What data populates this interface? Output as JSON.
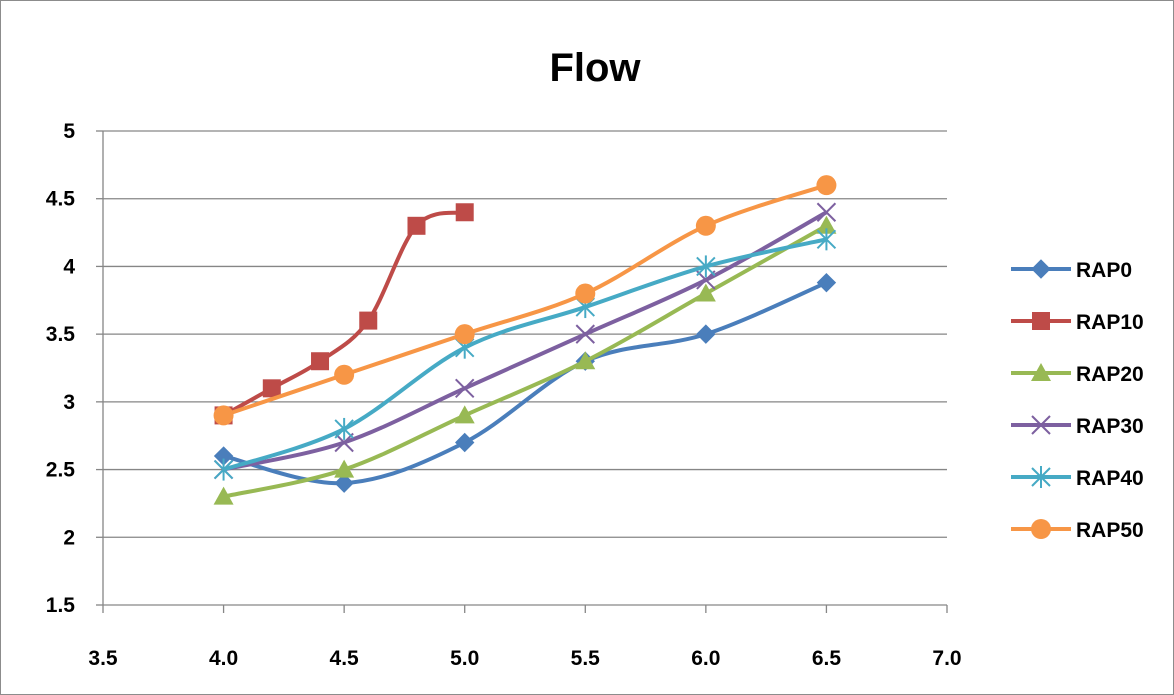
{
  "chart_data": {
    "type": "line",
    "title": "Flow",
    "xlabel": "",
    "ylabel": "",
    "xlim": [
      3.5,
      7.0
    ],
    "ylim": [
      1.5,
      5
    ],
    "x_ticks": [
      "3.5",
      "4.0",
      "4.5",
      "5.0",
      "5.5",
      "6.0",
      "6.5",
      "7.0"
    ],
    "y_ticks": [
      "1.5",
      "2",
      "2.5",
      "3",
      "3.5",
      "4",
      "4.5",
      "5"
    ],
    "grid": "horizontal",
    "legend_position": "right",
    "series": [
      {
        "name": "RAP0",
        "color": "#4a7ebb",
        "marker": "diamond",
        "x": [
          4.0,
          4.5,
          5.0,
          5.5,
          6.0,
          6.5
        ],
        "y": [
          2.6,
          2.4,
          2.7,
          3.3,
          3.5,
          3.88
        ]
      },
      {
        "name": "RAP10",
        "color": "#be4b48",
        "marker": "square",
        "x": [
          4.0,
          4.2,
          4.4,
          4.6,
          4.8,
          5.0
        ],
        "y": [
          2.9,
          3.1,
          3.3,
          3.6,
          4.3,
          4.4
        ]
      },
      {
        "name": "RAP20",
        "color": "#98b954",
        "marker": "triangle",
        "x": [
          4.0,
          4.5,
          5.0,
          5.5,
          6.0,
          6.5
        ],
        "y": [
          2.3,
          2.5,
          2.9,
          3.3,
          3.8,
          4.3
        ]
      },
      {
        "name": "RAP30",
        "color": "#7d60a0",
        "marker": "x",
        "x": [
          4.0,
          4.5,
          5.0,
          5.5,
          6.0,
          6.5
        ],
        "y": [
          2.5,
          2.7,
          3.1,
          3.5,
          3.9,
          4.4
        ]
      },
      {
        "name": "RAP40",
        "color": "#46aac5",
        "marker": "star",
        "x": [
          4.0,
          4.5,
          5.0,
          5.5,
          6.0,
          6.5
        ],
        "y": [
          2.5,
          2.8,
          3.4,
          3.7,
          4.0,
          4.2
        ]
      },
      {
        "name": "RAP50",
        "color": "#f79646",
        "marker": "circle",
        "x": [
          4.0,
          4.5,
          5.0,
          5.5,
          6.0,
          6.5
        ],
        "y": [
          2.9,
          3.2,
          3.5,
          3.8,
          4.3,
          4.6
        ]
      }
    ]
  }
}
